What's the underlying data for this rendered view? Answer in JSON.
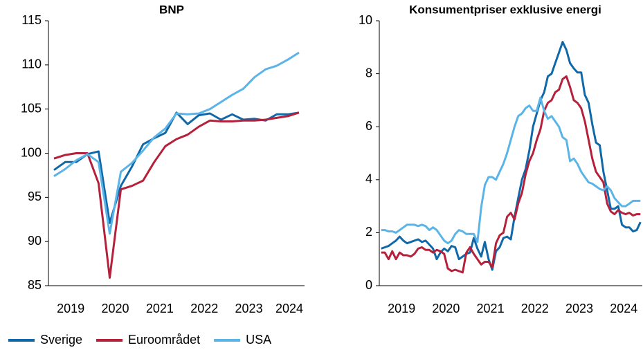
{
  "chart_data": [
    {
      "type": "line",
      "title": "BNP",
      "categories": [
        null,
        "2019",
        null,
        null,
        null,
        "2020",
        null,
        null,
        null,
        "2021",
        null,
        null,
        null,
        "2022",
        null,
        null,
        null,
        "2023",
        null,
        null,
        null,
        "2024",
        null
      ],
      "ylim": [
        85,
        115
      ],
      "yticks": [
        85,
        90,
        95,
        100,
        105,
        110,
        115
      ],
      "series": [
        {
          "name": "Sverige",
          "color": "#1068a8",
          "values": [
            98.1,
            99.0,
            99.0,
            99.9,
            100.2,
            92.1,
            96.3,
            98.5,
            101.0,
            101.7,
            102.3,
            104.6,
            103.3,
            104.3,
            104.5,
            103.8,
            104.4,
            103.8,
            103.9,
            103.7,
            104.4,
            104.4,
            104.6
          ]
        },
        {
          "name": "Euroområdet",
          "color": "#b5203a",
          "values": [
            99.4,
            99.8,
            100.0,
            100.0,
            96.6,
            85.9,
            95.9,
            96.3,
            96.9,
            99.0,
            100.8,
            101.6,
            102.1,
            103.0,
            103.7,
            103.6,
            103.6,
            103.7,
            103.7,
            103.8,
            104.0,
            104.2,
            104.6
          ]
        },
        {
          "name": "USA",
          "color": "#5ab4e8",
          "values": [
            97.4,
            98.2,
            99.2,
            99.9,
            99.0,
            90.9,
            97.9,
            98.9,
            100.3,
            101.8,
            102.8,
            104.5,
            104.4,
            104.5,
            105.0,
            105.8,
            106.6,
            107.3,
            108.6,
            109.5,
            109.9,
            110.6,
            111.4
          ]
        }
      ]
    },
    {
      "type": "line",
      "title": "Konsumentpriser exklusive energi",
      "categories": [
        null,
        null,
        null,
        null,
        null,
        "2019",
        null,
        null,
        null,
        null,
        null,
        null,
        null,
        null,
        null,
        null,
        null,
        "2020",
        null,
        null,
        null,
        null,
        null,
        null,
        null,
        null,
        null,
        null,
        null,
        "2021",
        null,
        null,
        null,
        null,
        null,
        null,
        null,
        null,
        null,
        null,
        null,
        "2022",
        null,
        null,
        null,
        null,
        null,
        null,
        null,
        null,
        null,
        null,
        null,
        "2023",
        null,
        null,
        null,
        null,
        null,
        null,
        null,
        null,
        null,
        null,
        null,
        "2024",
        null,
        null,
        null,
        null,
        null
      ],
      "ylim": [
        0,
        10
      ],
      "yticks": [
        0,
        2,
        4,
        6,
        8,
        10
      ],
      "series": [
        {
          "color": "#1068a8",
          "values": [
            1.4,
            1.45,
            1.5,
            1.6,
            1.7,
            1.85,
            1.7,
            1.6,
            1.65,
            1.7,
            1.75,
            1.65,
            1.7,
            1.55,
            1.4,
            1.0,
            1.25,
            1.4,
            1.3,
            1.5,
            1.45,
            1.0,
            1.1,
            1.2,
            1.25,
            1.8,
            1.4,
            1.1,
            1.65,
            1.0,
            0.6,
            1.3,
            1.45,
            1.8,
            1.85,
            1.75,
            2.6,
            3.3,
            4.0,
            4.4,
            5.1,
            6.0,
            6.5,
            7.0,
            7.3,
            7.9,
            8.0,
            8.4,
            8.8,
            9.2,
            8.9,
            8.4,
            8.2,
            8.05,
            8.05,
            7.2,
            6.9,
            6.1,
            5.4,
            5.3,
            4.3,
            3.6,
            2.9,
            2.9,
            3.0,
            2.3,
            2.2,
            2.2,
            2.05,
            2.1,
            2.4
          ]
        },
        {
          "color": "#b5203a",
          "values": [
            1.25,
            1.25,
            1.0,
            1.3,
            1.0,
            1.25,
            1.15,
            1.15,
            1.1,
            1.2,
            1.4,
            1.45,
            1.35,
            1.35,
            1.25,
            1.35,
            1.3,
            1.2,
            0.65,
            0.55,
            0.6,
            0.55,
            0.5,
            1.25,
            1.45,
            1.2,
            1.0,
            0.8,
            0.9,
            0.9,
            0.7,
            1.6,
            1.9,
            2.0,
            2.6,
            2.75,
            2.5,
            3.1,
            3.5,
            4.2,
            4.7,
            5.0,
            5.5,
            5.9,
            6.6,
            6.9,
            7.0,
            7.3,
            7.4,
            7.8,
            7.9,
            7.5,
            7.0,
            6.9,
            6.7,
            6.2,
            5.5,
            4.8,
            4.3,
            4.1,
            3.9,
            3.1,
            2.8,
            2.7,
            2.85,
            2.75,
            2.7,
            2.75,
            2.65,
            2.7,
            2.7
          ]
        },
        {
          "color": "#5ab4e8",
          "values": [
            2.1,
            2.1,
            2.05,
            2.05,
            2.0,
            2.1,
            2.2,
            2.3,
            2.3,
            2.3,
            2.25,
            2.3,
            2.25,
            2.1,
            2.2,
            2.1,
            1.9,
            1.7,
            1.6,
            1.7,
            1.95,
            2.1,
            2.05,
            1.95,
            1.95,
            1.95,
            1.65,
            2.95,
            3.8,
            4.1,
            4.1,
            4.0,
            4.3,
            4.6,
            5.0,
            5.5,
            6.0,
            6.4,
            6.5,
            6.7,
            6.8,
            6.6,
            6.6,
            7.1,
            6.6,
            6.3,
            6.4,
            6.2,
            6.0,
            5.6,
            5.5,
            4.7,
            4.8,
            4.6,
            4.3,
            4.1,
            3.9,
            3.85,
            3.75,
            3.65,
            3.6,
            3.75,
            3.6,
            3.3,
            3.15,
            3.0,
            3.0,
            3.1,
            3.2,
            3.2,
            3.2
          ]
        }
      ]
    }
  ]
}
